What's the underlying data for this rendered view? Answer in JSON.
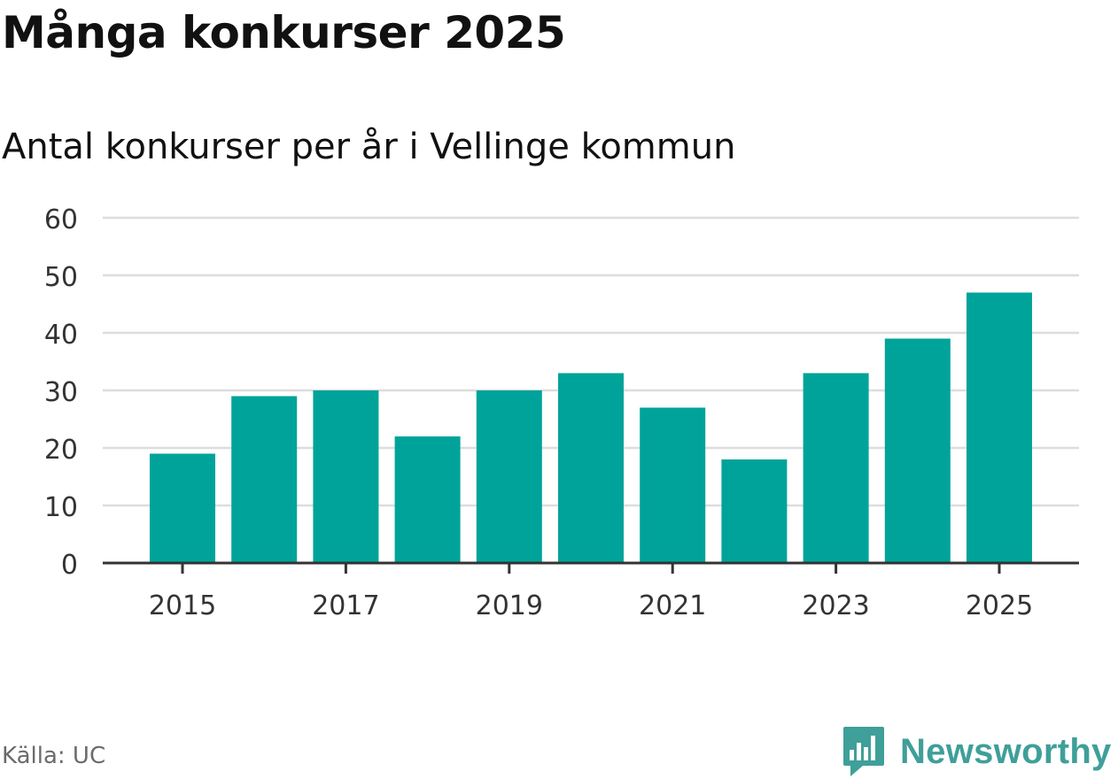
{
  "header": {
    "title": "Många konkurser 2025",
    "subtitle": "Antal konkurser per år i Vellinge kommun"
  },
  "footer": {
    "source": "Källa: UC",
    "brand": "Newsworthy"
  },
  "colors": {
    "bar": "#00a39a",
    "grid": "#dddddd",
    "axis": "#333333",
    "brand": "#3f9f99"
  },
  "chart_data": {
    "type": "bar",
    "title": "Många konkurser 2025",
    "subtitle": "Antal konkurser per år i Vellinge kommun",
    "xlabel": "",
    "ylabel": "",
    "categories": [
      2015,
      2016,
      2017,
      2018,
      2019,
      2020,
      2021,
      2022,
      2023,
      2024,
      2025
    ],
    "values": [
      19,
      29,
      30,
      22,
      30,
      33,
      27,
      18,
      33,
      39,
      47
    ],
    "x_tick_labels": [
      "2015",
      "2017",
      "2019",
      "2021",
      "2023",
      "2025"
    ],
    "y_ticks": [
      0,
      10,
      20,
      30,
      40,
      50,
      60
    ],
    "ylim": [
      0,
      60
    ],
    "grid": true
  }
}
